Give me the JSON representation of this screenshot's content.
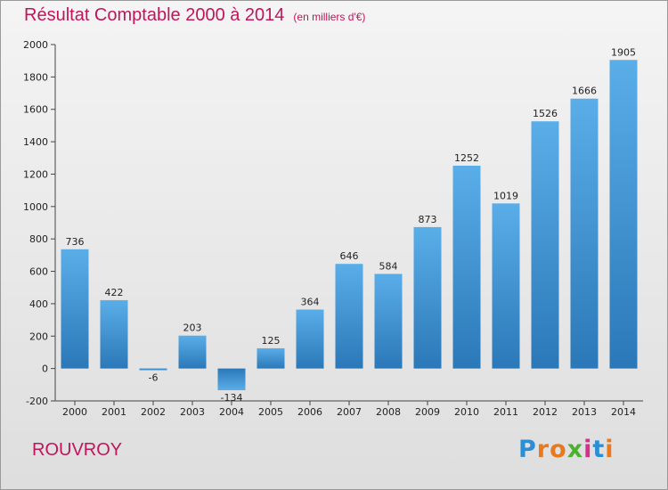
{
  "chart_data": {
    "type": "bar",
    "title": "Résultat Comptable 2000 à 2014",
    "subtitle": "(en milliers d'€)",
    "categories": [
      "2000",
      "2001",
      "2002",
      "2003",
      "2004",
      "2005",
      "2006",
      "2007",
      "2008",
      "2009",
      "2010",
      "2011",
      "2012",
      "2013",
      "2014"
    ],
    "values": [
      736,
      422,
      -6,
      203,
      -134,
      125,
      364,
      646,
      584,
      873,
      1252,
      1019,
      1526,
      1666,
      1905
    ],
    "ylim": [
      -200,
      2000
    ],
    "yticks": [
      -200,
      0,
      200,
      400,
      600,
      800,
      1000,
      1200,
      1400,
      1600,
      1800,
      2000
    ],
    "xlabel": "",
    "ylabel": "",
    "grid": false,
    "colors": {
      "bar_top": "#5aaee8",
      "bar_bottom": "#2b78b8",
      "title": "#c0155b"
    }
  },
  "commune": "ROUVROY",
  "logo": {
    "text": "Proxiti",
    "letters": [
      "P",
      "r",
      "o",
      "x",
      "i",
      "t",
      "i"
    ],
    "colors": [
      "#2a8fd6",
      "#e8791e",
      "#e8791e",
      "#4cb030",
      "#d62f8c",
      "#2a8fd6",
      "#e8791e"
    ]
  }
}
